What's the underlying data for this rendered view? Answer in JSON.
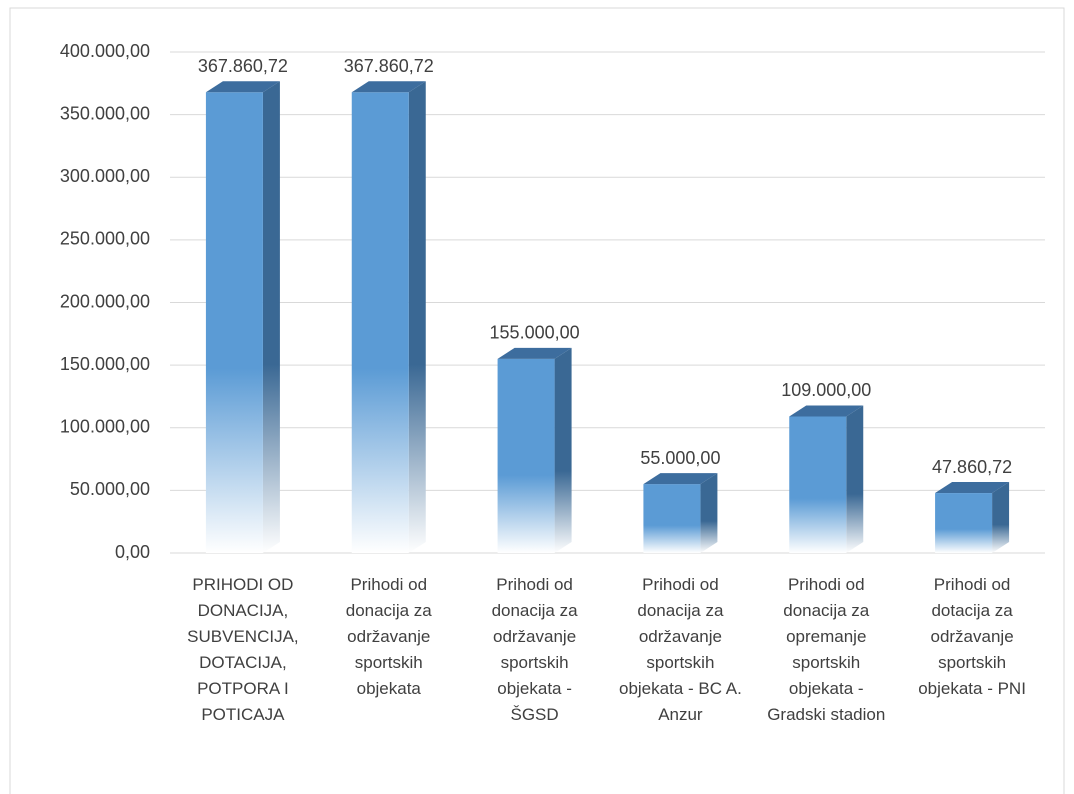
{
  "chart_data": {
    "type": "bar3d",
    "categories": [
      "PRIHODI OD DONACIJA, SUBVENCIJA, DOTACIJA, POTPORA I POTICAJA",
      "Prihodi od donacija za održavanje sportskih objekata",
      "Prihodi od donacija za održavanje sportskih objekata - ŠGSD",
      "Prihodi od donacija za održavanje sportskih objekata - BC A. Anzur",
      "Prihodi od donacija za opremanje sportskih objekata - Gradski stadion",
      "Prihodi od dotacija za održavanje sportskih objekata - PNI"
    ],
    "values": [
      367860.72,
      367860.72,
      155000,
      55000,
      109000,
      47860.72
    ],
    "value_labels": [
      "367.860,72",
      "367.860,72",
      "155.000,00",
      "55.000,00",
      "109.000,00",
      "47.860,72"
    ],
    "color": "#5b9bd5",
    "ylim": [
      0,
      400000
    ],
    "yticks": [
      {
        "value": 0,
        "label": "0,00"
      },
      {
        "value": 50000,
        "label": "50.000,00"
      },
      {
        "value": 100000,
        "label": "100.000,00"
      },
      {
        "value": 150000,
        "label": "150.000,00"
      },
      {
        "value": 200000,
        "label": "200.000,00"
      },
      {
        "value": 250000,
        "label": "250.000,00"
      },
      {
        "value": 300000,
        "label": "300.000,00"
      },
      {
        "value": 350000,
        "label": "350.000,00"
      },
      {
        "value": 400000,
        "label": "400.000,00"
      }
    ],
    "grid": true
  }
}
